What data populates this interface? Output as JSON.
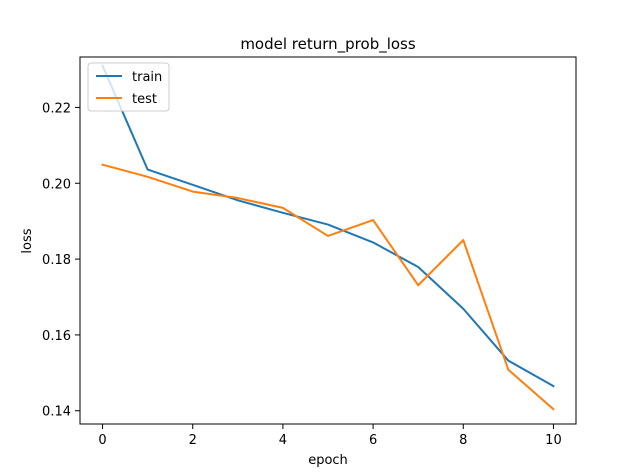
{
  "chart_data": {
    "type": "line",
    "title": "model return_prob_loss",
    "xlabel": "epoch",
    "ylabel": "loss",
    "x": [
      0,
      1,
      2,
      3,
      4,
      5,
      6,
      7,
      8,
      9,
      10
    ],
    "xlim": [
      -0.5,
      10.5
    ],
    "ylim": [
      0.1365,
      0.2333
    ],
    "xticks": [
      0,
      2,
      4,
      6,
      8,
      10
    ],
    "yticks": [
      0.14,
      0.16,
      0.18,
      0.2,
      0.22
    ],
    "ytick_labels": [
      "0.14",
      "0.16",
      "0.18",
      "0.20",
      "0.22"
    ],
    "grid": false,
    "legend_position": "upper-left",
    "series": [
      {
        "name": "train",
        "color": "#1f77b4",
        "values": [
          0.231,
          0.2036,
          0.1996,
          0.1955,
          0.1922,
          0.1891,
          0.1844,
          0.1779,
          0.1669,
          0.1532,
          0.1465
        ]
      },
      {
        "name": "test",
        "color": "#ff7f0e",
        "values": [
          0.2049,
          0.2017,
          0.1978,
          0.1961,
          0.1935,
          0.1861,
          0.1903,
          0.1731,
          0.185,
          0.1508,
          0.1404
        ]
      }
    ]
  }
}
